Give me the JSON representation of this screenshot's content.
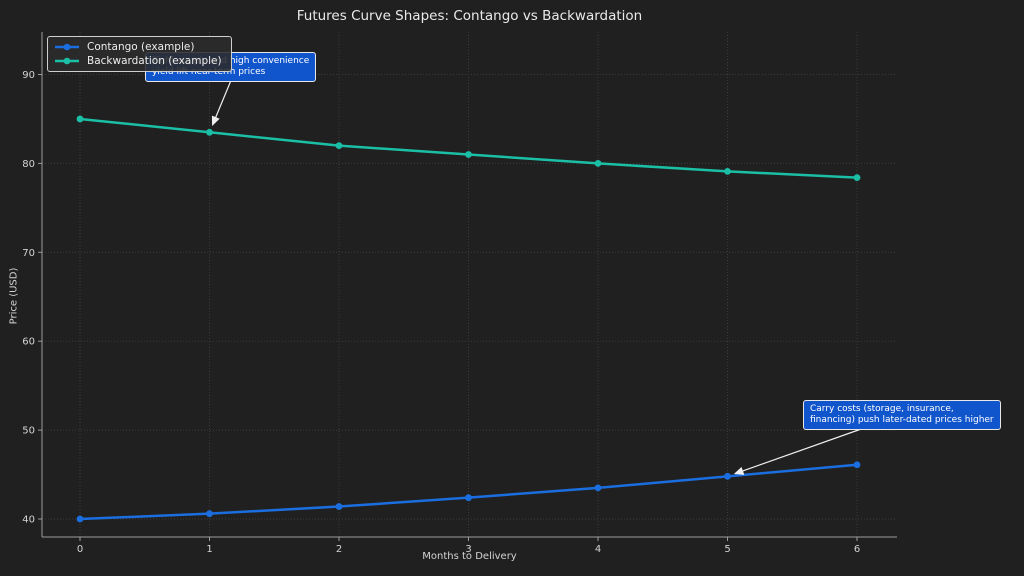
{
  "chart_data": {
    "type": "line",
    "title": "Futures Curve Shapes: Contango vs Backwardation",
    "xlabel": "Months to Delivery",
    "ylabel": "Price (USD)",
    "x": [
      0,
      1,
      2,
      3,
      4,
      5,
      6
    ],
    "x_ticks": [
      "0",
      "1",
      "2",
      "3",
      "4",
      "5",
      "6"
    ],
    "y_ticks": [
      40,
      50,
      60,
      70,
      80,
      90
    ],
    "xlim": [
      -0.3,
      6.31
    ],
    "ylim": [
      38,
      94.8
    ],
    "grid": true,
    "legend_position": "upper left",
    "series": [
      {
        "name": "Contango (example)",
        "color": "#1b6ee0",
        "values": [
          40.0,
          40.6,
          41.4,
          42.4,
          43.5,
          44.8,
          46.1
        ]
      },
      {
        "name": "Backwardation (example)",
        "color": "#1bbfa6",
        "values": [
          85.0,
          83.5,
          82.0,
          81.0,
          80.0,
          79.1,
          78.4
        ]
      }
    ],
    "annotations": [
      {
        "lines": [
          "Tight supply and high convenience",
          "yield lift near-term prices"
        ],
        "target_month": 1,
        "target_value": 83.5,
        "box_color": "#1155cc"
      },
      {
        "lines": [
          "Carry costs (storage, insurance,",
          "financing) push later-dated prices higher"
        ],
        "target_month": 5,
        "target_value": 44.8,
        "box_color": "#1155cc"
      }
    ]
  },
  "theme": {
    "figure_bg": "#202020",
    "axes_bg": "#202020",
    "grid_color": "#3c3c3c",
    "spine_color": "#9c9c9c",
    "tick_label_color": "#d4d4d4",
    "text_color": "#eaeaea",
    "arrow_color": "#f0f0f0",
    "legend_bg": "rgba(43,43,43,0.88)",
    "legend_border": "#cfcfcf",
    "annotation_bg": "#1155cc"
  }
}
